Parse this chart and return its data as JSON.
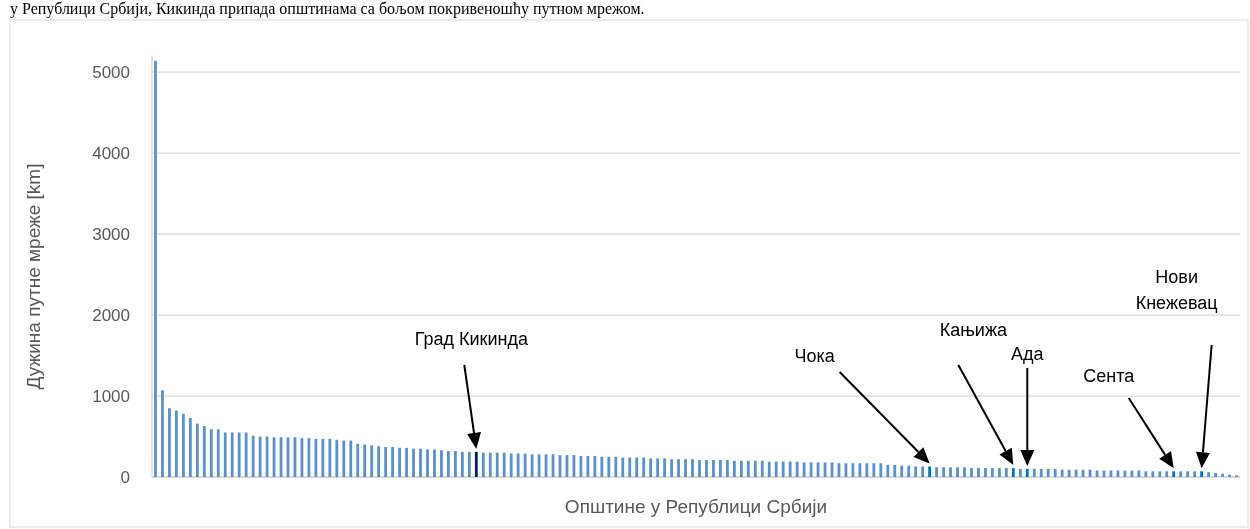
{
  "chart_data": {
    "type": "bar",
    "ylabel": "Дужина путне мреже [km]",
    "xlabel": "Општине у Републици Србији",
    "tick_labels": "y",
    "grid": "y",
    "ylim": [
      0,
      5200
    ],
    "yticks": [
      0,
      1000,
      2000,
      3000,
      4000,
      5000
    ],
    "categories": [
      null,
      null,
      null,
      null,
      null,
      null,
      null,
      null,
      null,
      null,
      null,
      null,
      null,
      null,
      null,
      null,
      null,
      null,
      null,
      null,
      null,
      null,
      null,
      null,
      null,
      null,
      null,
      null,
      null,
      null,
      null,
      null,
      null,
      null,
      null,
      null,
      null,
      null,
      null,
      null,
      null,
      null,
      null,
      null,
      null,
      null,
      null,
      null,
      null,
      null,
      null,
      null,
      null,
      null,
      null,
      null,
      null,
      null,
      null,
      null,
      null,
      null,
      null,
      null,
      null,
      null,
      null,
      null,
      null,
      null,
      null,
      null,
      null,
      null,
      null,
      null,
      null,
      null,
      null,
      null,
      null,
      null,
      null,
      null,
      null,
      null,
      null,
      null,
      null,
      null,
      null,
      null,
      null,
      null,
      null,
      null,
      null,
      null,
      null,
      null,
      null,
      null,
      null,
      null,
      null,
      null,
      null,
      null,
      null,
      null,
      null,
      null,
      null,
      null,
      null,
      null,
      null,
      null,
      null,
      null,
      null,
      null,
      null,
      null,
      null,
      null,
      null,
      null,
      null,
      null,
      null,
      null,
      null,
      null,
      null,
      null,
      null,
      null,
      null,
      null,
      null,
      null,
      null,
      null,
      null,
      null,
      null,
      null,
      null,
      null,
      null,
      null,
      null,
      null,
      null,
      null
    ],
    "series": [
      {
        "color": "#5b8fd0",
        "values": [
          5140,
          1070,
          850,
          820,
          780,
          730,
          660,
          630,
          590,
          590,
          550,
          550,
          550,
          550,
          510,
          500,
          500,
          490,
          490,
          490,
          490,
          480,
          480,
          470,
          470,
          470,
          460,
          450,
          450,
          410,
          400,
          390,
          380,
          370,
          370,
          360,
          360,
          350,
          350,
          340,
          340,
          330,
          320,
          320,
          310,
          310,
          310,
          300,
          300,
          300,
          300,
          290,
          290,
          290,
          280,
          280,
          280,
          280,
          270,
          270,
          270,
          260,
          260,
          260,
          250,
          250,
          250,
          240,
          240,
          240,
          240,
          230,
          230,
          230,
          220,
          220,
          220,
          220,
          210,
          210,
          210,
          210,
          210,
          200,
          200,
          200,
          200,
          200,
          190,
          190,
          190,
          190,
          190,
          180,
          180,
          180,
          180,
          180,
          170,
          170,
          170,
          170,
          170,
          170,
          170,
          150,
          150,
          140,
          140,
          130,
          130,
          130,
          120,
          120,
          120,
          120,
          120,
          110,
          110,
          110,
          110,
          110,
          110,
          110,
          100,
          100,
          100,
          100,
          100,
          100,
          90,
          90,
          90,
          90,
          90,
          80,
          80,
          80,
          80,
          80,
          80,
          80,
          70,
          70,
          70,
          70,
          70,
          70,
          70,
          70,
          70,
          60,
          50,
          40,
          30,
          20
        ],
        "colors": [
          "#5b8fd0",
          "#5b8fd0",
          "#5b8fd0",
          "#5b8fd0",
          "#5b8fd0",
          "#5b8fd0",
          "#5b8fd0",
          "#5b8fd0",
          "#5b8fd0",
          "#5b8fd0",
          "#5b8fd0",
          "#5b8fd0",
          "#5b8fd0",
          "#5b8fd0",
          "#5b8fd0",
          "#5b8fd0",
          "#5b8fd0",
          "#5b8fd0",
          "#5b8fd0",
          "#5b8fd0",
          "#5b8fd0",
          "#5b8fd0",
          "#5b8fd0",
          "#5b8fd0",
          "#5b8fd0",
          "#5b8fd0",
          "#5b8fd0",
          "#5b8fd0",
          "#5b8fd0",
          "#5b8fd0",
          "#5b8fd0",
          "#5b8fd0",
          "#5b8fd0",
          "#5b8fd0",
          "#5b8fd0",
          "#5b8fd0",
          "#5b8fd0",
          "#5b8fd0",
          "#5b8fd0",
          "#5b8fd0",
          "#5b8fd0",
          "#5b8fd0",
          "#5b8fd0",
          "#5b8fd0",
          "#5b8fd0",
          "#5b8fd0",
          "#002060",
          "#5b8fd0",
          "#5b8fd0",
          "#5b8fd0",
          "#5b8fd0",
          "#5b8fd0",
          "#5b8fd0",
          "#5b8fd0",
          "#5b8fd0",
          "#5b8fd0",
          "#5b8fd0",
          "#5b8fd0",
          "#5b8fd0",
          "#5b8fd0",
          "#5b8fd0",
          "#5b8fd0",
          "#5b8fd0",
          "#5b8fd0",
          "#5b8fd0",
          "#5b8fd0",
          "#5b8fd0",
          "#5b8fd0",
          "#5b8fd0",
          "#5b8fd0",
          "#5b8fd0",
          "#5b8fd0",
          "#5b8fd0",
          "#5b8fd0",
          "#5b8fd0",
          "#5b8fd0",
          "#5b8fd0",
          "#5b8fd0",
          "#5b8fd0",
          "#5b8fd0",
          "#5b8fd0",
          "#5b8fd0",
          "#5b8fd0",
          "#5b8fd0",
          "#5b8fd0",
          "#5b8fd0",
          "#5b8fd0",
          "#5b8fd0",
          "#5b8fd0",
          "#5b8fd0",
          "#5b8fd0",
          "#5b8fd0",
          "#5b8fd0",
          "#5b8fd0",
          "#5b8fd0",
          "#5b8fd0",
          "#5b8fd0",
          "#5b8fd0",
          "#5b8fd0",
          "#5b8fd0",
          "#5b8fd0",
          "#5b8fd0",
          "#5b8fd0",
          "#5b8fd0",
          "#5b8fd0",
          "#5b8fd0",
          "#5b8fd0",
          "#5b8fd0",
          "#5b8fd0",
          "#5b8fd0",
          "#5b8fd0",
          "#0070c0",
          "#5b8fd0",
          "#5b8fd0",
          "#5b8fd0",
          "#5b8fd0",
          "#5b8fd0",
          "#5b8fd0",
          "#5b8fd0",
          "#5b8fd0",
          "#5b8fd0",
          "#5b8fd0",
          "#5b8fd0",
          "#0070c0",
          "#5b8fd0",
          "#0070c0",
          "#5b8fd0",
          "#5b8fd0",
          "#5b8fd0",
          "#5b8fd0",
          "#5b8fd0",
          "#5b8fd0",
          "#5b8fd0",
          "#5b8fd0",
          "#5b8fd0",
          "#5b8fd0",
          "#5b8fd0",
          "#5b8fd0",
          "#5b8fd0",
          "#5b8fd0",
          "#5b8fd0",
          "#5b8fd0",
          "#5b8fd0",
          "#5b8fd0",
          "#5b8fd0",
          "#5b8fd0",
          "#0070c0",
          "#5b8fd0",
          "#5b8fd0",
          "#5b8fd0",
          "#0070c0",
          "#5b8fd0",
          "#5b8fd0",
          "#5b8fd0",
          "#5b8fd0",
          "#5b8fd0"
        ]
      }
    ],
    "annotations": [
      "у Републици Србији, Кикинда припада општинама са бољом покривеношћу путном мрежом.",
      "Град Кикинда",
      "Чока",
      "Кањижа",
      "Ада",
      "Сента",
      "Нови Кнежевац"
    ]
  }
}
